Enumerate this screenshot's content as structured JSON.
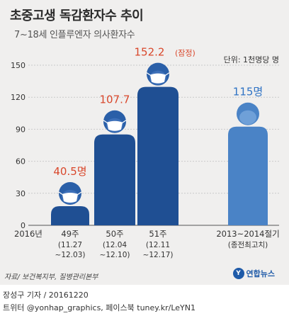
{
  "title": "초중고생 독감환자수 추이",
  "subtitle": "7~18세 인플루엔자 의사환자수",
  "unit_label": "단위: 1천명당 명",
  "source": "자료/ 보건복지부, 질병관리본부",
  "logo": {
    "mark": "Y",
    "text": "연합뉴스"
  },
  "credits": {
    "line1": "장성구 기자 / 20161220",
    "line2": "트위터 @yonhap_graphics, 페이스북 tuney.kr/LeYN1"
  },
  "colors": {
    "bar_main": "#1f4f93",
    "bar_highlight": "#4a83c6",
    "head_main": "#2a5fa8",
    "label_red": "#d9472b",
    "label_blue": "#2f73c4"
  },
  "icons": [
    "person-with-mask-icon"
  ],
  "chart_data": {
    "type": "bar",
    "ylim": [
      0,
      150
    ],
    "yticks": [
      "0",
      "30",
      "60",
      "90",
      "120",
      "150"
    ],
    "year_label": "2016년",
    "categories": [
      {
        "label": "49주",
        "sub1": "(11.27",
        "sub2": "~12.03)"
      },
      {
        "label": "50주",
        "sub1": "(12.04",
        "sub2": "~12.10)"
      },
      {
        "label": "51주",
        "sub1": "(12.11",
        "sub2": "~12.17)"
      },
      {
        "label": "2013~2014절기",
        "sub1": "(종전최고치)",
        "sub2": ""
      }
    ],
    "values": [
      40.5,
      107.7,
      152.2,
      115
    ],
    "data_labels": [
      "40.5명",
      "107.7",
      "152.2",
      "115명"
    ],
    "annotation": "(잠정)"
  }
}
